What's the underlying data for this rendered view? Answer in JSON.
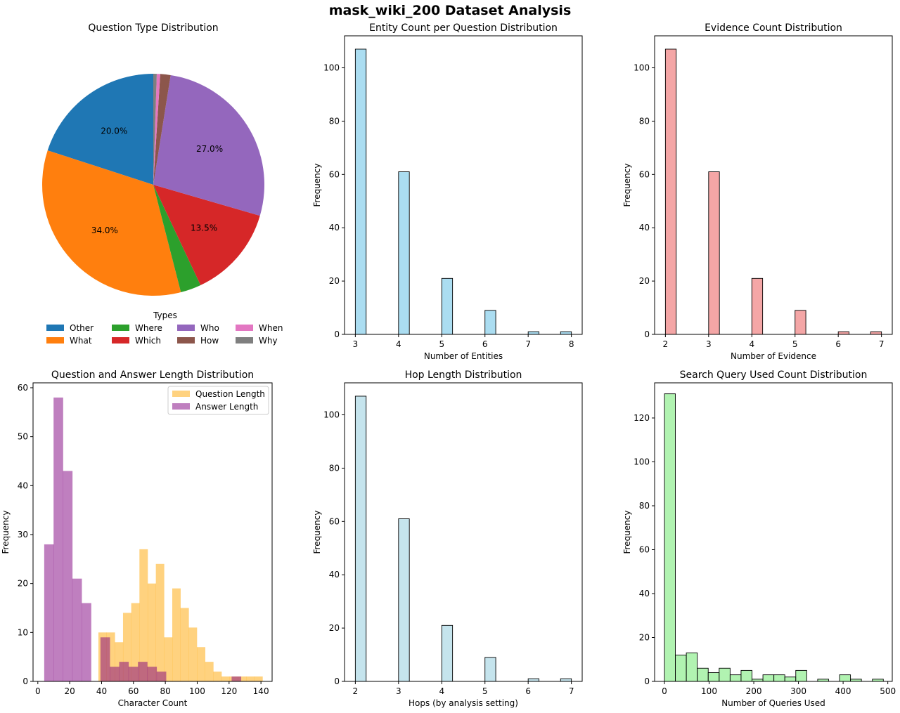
{
  "figure_title": "mask_wiki_200 Dataset Analysis",
  "chart_data": [
    {
      "type": "pie",
      "title": "Question Type Distribution",
      "legend_title": "Types",
      "legend_position": "bottom-center",
      "slices": [
        {
          "label": "Other",
          "value": 20.0,
          "pct_label": "20.0%",
          "color": "#1f77b4"
        },
        {
          "label": "What",
          "value": 34.0,
          "pct_label": "34.0%",
          "color": "#ff7f0e"
        },
        {
          "label": "Where",
          "value": 3.0,
          "pct_label": "",
          "color": "#2ca02c"
        },
        {
          "label": "Which",
          "value": 13.5,
          "pct_label": "13.5%",
          "color": "#d62728"
        },
        {
          "label": "Who",
          "value": 27.0,
          "pct_label": "27.0%",
          "color": "#9467bd"
        },
        {
          "label": "How",
          "value": 1.5,
          "pct_label": "",
          "color": "#8c564b"
        },
        {
          "label": "When",
          "value": 0.5,
          "pct_label": "",
          "color": "#e377c2"
        },
        {
          "label": "Why",
          "value": 0.5,
          "pct_label": "",
          "color": "#7f7f7f"
        }
      ]
    },
    {
      "type": "bar",
      "title": "Entity Count per Question Distribution",
      "xlabel": "Number of Entities",
      "ylabel": "Frequency",
      "xlim": [
        2.75,
        8.25
      ],
      "ylim": [
        0,
        112
      ],
      "xticks": [
        "3",
        "4",
        "5",
        "6",
        "7",
        "8"
      ],
      "xtick_values": [
        3,
        4,
        5,
        6,
        7,
        8
      ],
      "yticks": [
        0,
        20,
        40,
        60,
        80,
        100
      ],
      "bin_width": 0.25,
      "color": "#87ceeb",
      "alpha": 0.7,
      "bars": [
        {
          "x": 3,
          "y": 107
        },
        {
          "x": 4,
          "y": 61
        },
        {
          "x": 5,
          "y": 21
        },
        {
          "x": 6,
          "y": 9
        },
        {
          "x": 7,
          "y": 1
        },
        {
          "x": 7.75,
          "y": 1
        }
      ]
    },
    {
      "type": "bar",
      "title": "Evidence Count Distribution",
      "xlabel": "Number of Evidence",
      "ylabel": "Frequency",
      "xlim": [
        1.75,
        7.25
      ],
      "ylim": [
        0,
        112
      ],
      "xticks": [
        "2",
        "3",
        "4",
        "5",
        "6",
        "7"
      ],
      "xtick_values": [
        2,
        3,
        4,
        5,
        6,
        7
      ],
      "yticks": [
        0,
        20,
        40,
        60,
        80,
        100
      ],
      "bin_width": 0.25,
      "color": "#f08080",
      "alpha": 0.7,
      "bars": [
        {
          "x": 2,
          "y": 107
        },
        {
          "x": 3,
          "y": 61
        },
        {
          "x": 4,
          "y": 21
        },
        {
          "x": 5,
          "y": 9
        },
        {
          "x": 6,
          "y": 1
        },
        {
          "x": 6.75,
          "y": 1
        }
      ]
    },
    {
      "type": "bar",
      "title": "Question and Answer Length Distribution",
      "xlabel": "Character Count",
      "ylabel": "Frequency",
      "xlim": [
        -3,
        147
      ],
      "ylim": [
        0,
        61
      ],
      "xticks": [
        "0",
        "20",
        "40",
        "60",
        "80",
        "100",
        "120",
        "140"
      ],
      "xtick_values": [
        0,
        20,
        40,
        60,
        80,
        100,
        120,
        140
      ],
      "yticks": [
        0,
        10,
        20,
        30,
        40,
        50,
        60
      ],
      "legend_position": "top-right",
      "series": [
        {
          "name": "Question Length",
          "color": "#ffa500",
          "alpha": 0.5,
          "bin_start": 38,
          "bin_width": 5.15,
          "values": [
            10,
            10,
            8,
            14,
            16,
            27,
            20,
            24,
            9,
            19,
            15,
            11,
            7,
            4,
            2,
            1,
            1,
            1,
            1,
            1
          ]
        },
        {
          "name": "Answer Length",
          "color": "#800080",
          "alpha": 0.5,
          "bin_start": 4,
          "bin_width": 5.88,
          "values": [
            28,
            58,
            43,
            21,
            16,
            0,
            9,
            3,
            4,
            3,
            4,
            3,
            2,
            0,
            0,
            0,
            0,
            0,
            0,
            0,
            1
          ]
        }
      ]
    },
    {
      "type": "bar",
      "title": "Hop Length Distribution",
      "xlabel": "Hops (by analysis setting)",
      "ylabel": "Frequency",
      "xlim": [
        1.75,
        7.25
      ],
      "ylim": [
        0,
        112
      ],
      "xticks": [
        "2",
        "3",
        "4",
        "5",
        "6",
        "7"
      ],
      "xtick_values": [
        2,
        3,
        4,
        5,
        6,
        7
      ],
      "yticks": [
        0,
        20,
        40,
        60,
        80,
        100
      ],
      "bin_width": 0.25,
      "color": "#add8e6",
      "alpha": 0.7,
      "bars": [
        {
          "x": 2,
          "y": 107
        },
        {
          "x": 3,
          "y": 61
        },
        {
          "x": 4,
          "y": 21
        },
        {
          "x": 5,
          "y": 9
        },
        {
          "x": 6,
          "y": 1
        },
        {
          "x": 6.75,
          "y": 1
        }
      ]
    },
    {
      "type": "bar",
      "title": "Search Query Used Count Distribution",
      "xlabel": "Number of Queries Used",
      "ylabel": "Frequency",
      "xlim": [
        -22,
        510
      ],
      "ylim": [
        0,
        136
      ],
      "xticks": [
        "0",
        "100",
        "200",
        "300",
        "400",
        "500"
      ],
      "xtick_values": [
        0,
        100,
        200,
        300,
        400,
        500
      ],
      "yticks": [
        0,
        20,
        40,
        60,
        80,
        100,
        120
      ],
      "bin_width": 24.5,
      "bin_start": 0,
      "color": "#90ee90",
      "alpha": 0.7,
      "values": [
        131,
        12,
        13,
        6,
        4,
        6,
        3,
        5,
        1,
        3,
        3,
        2,
        5,
        0,
        1,
        0,
        3,
        1,
        0,
        1
      ]
    }
  ]
}
